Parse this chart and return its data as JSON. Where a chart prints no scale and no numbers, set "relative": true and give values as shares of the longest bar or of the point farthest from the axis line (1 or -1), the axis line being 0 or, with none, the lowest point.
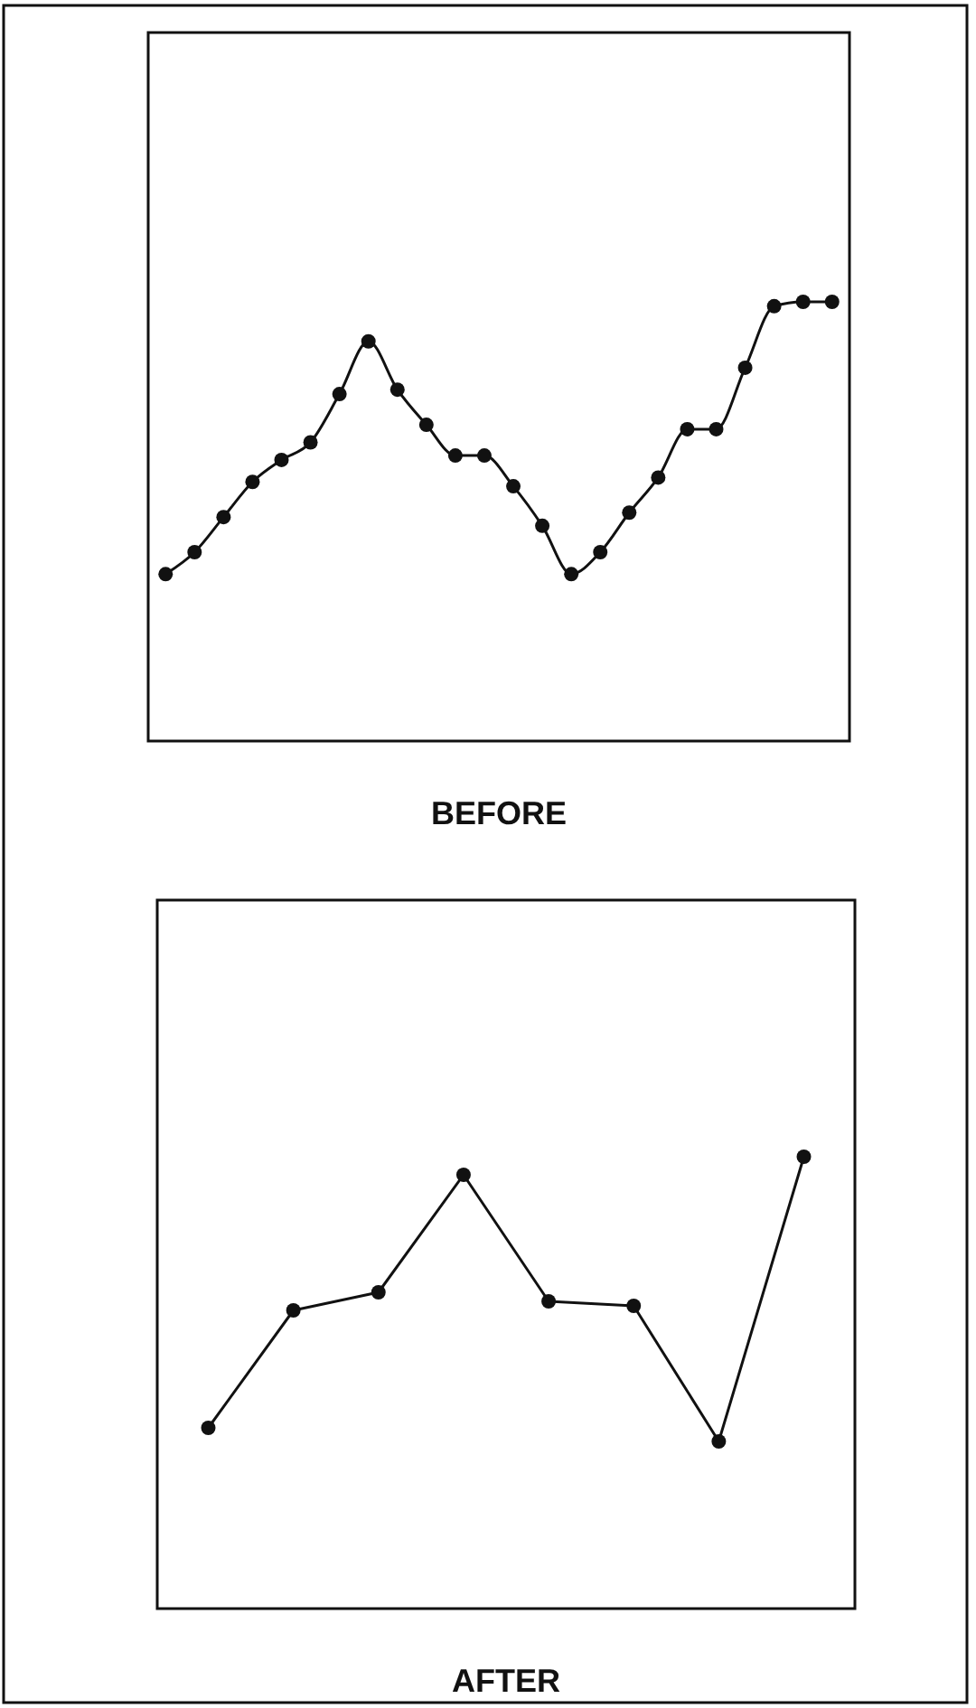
{
  "chart_data": [
    {
      "type": "line",
      "title": "BEFORE",
      "relative": true,
      "marker": "circle",
      "line_style": "solid",
      "categories": [
        null,
        null,
        null,
        null,
        null,
        null,
        null,
        null,
        null,
        null,
        null,
        null,
        null,
        null,
        null,
        null,
        null,
        null,
        null,
        null,
        null,
        null,
        null,
        null
      ],
      "series": [
        {
          "color": "#111111",
          "values": [
            0.38,
            0.43,
            0.51,
            0.59,
            0.64,
            0.68,
            0.79,
            0.91,
            0.8,
            0.72,
            0.65,
            0.65,
            0.58,
            0.49,
            0.38,
            0.43,
            0.52,
            0.6,
            0.71,
            0.71,
            0.85,
            0.99,
            1,
            1
          ]
        }
      ]
    },
    {
      "type": "line",
      "title": "AFTER",
      "relative": true,
      "marker": "circle",
      "line_style": "solid",
      "categories": [
        null,
        null,
        null,
        null,
        null,
        null,
        null,
        null
      ],
      "series": [
        {
          "color": "#111111",
          "values": [
            0.4,
            0.66,
            0.7,
            0.96,
            0.68,
            0.67,
            0.37,
            1
          ]
        }
      ]
    }
  ]
}
